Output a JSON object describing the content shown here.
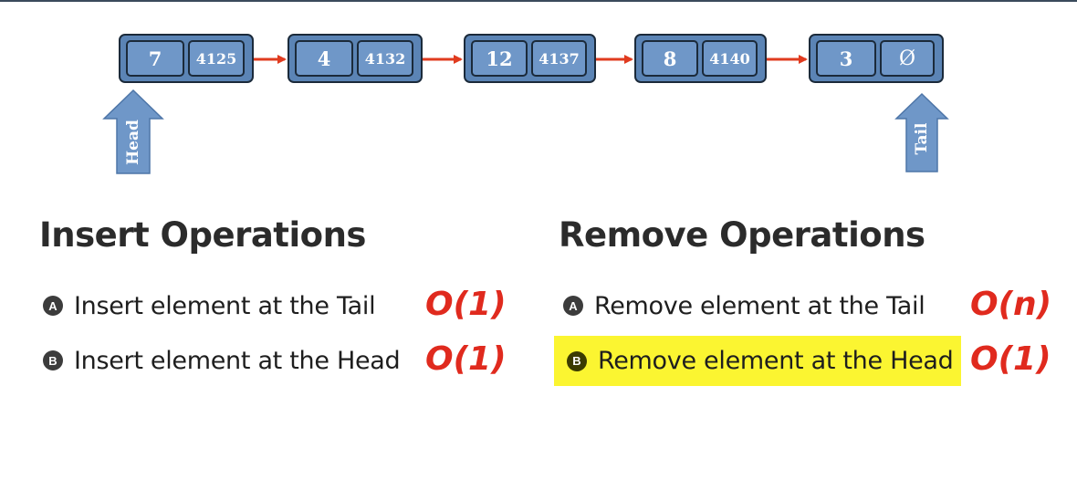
{
  "linked_list": {
    "nodes": [
      {
        "value": "7",
        "next": "4125"
      },
      {
        "value": "4",
        "next": "4132"
      },
      {
        "value": "12",
        "next": "4137"
      },
      {
        "value": "8",
        "next": "4140"
      },
      {
        "value": "3",
        "next": "Ø"
      }
    ],
    "head_label": "Head",
    "tail_label": "Tail",
    "node_color": "#5b84b5",
    "link_arrow_color": "#e03b1f",
    "pointer_color": "#6f97c8"
  },
  "insert": {
    "title": "Insert Operations",
    "operations": [
      {
        "badge": "A",
        "label": "Insert element at the Tail",
        "complexity": "O(1)"
      },
      {
        "badge": "B",
        "label": "Insert element at the Head",
        "complexity": "O(1)"
      }
    ]
  },
  "remove": {
    "title": "Remove Operations",
    "operations": [
      {
        "badge": "A",
        "label": "Remove element at the Tail",
        "complexity": "O(n)"
      },
      {
        "badge": "B",
        "label": "Remove element at the Head",
        "complexity": "O(1)",
        "highlighted": true
      }
    ],
    "highlight_color": "#fbf531"
  },
  "complexity_color": "#e02a1e"
}
